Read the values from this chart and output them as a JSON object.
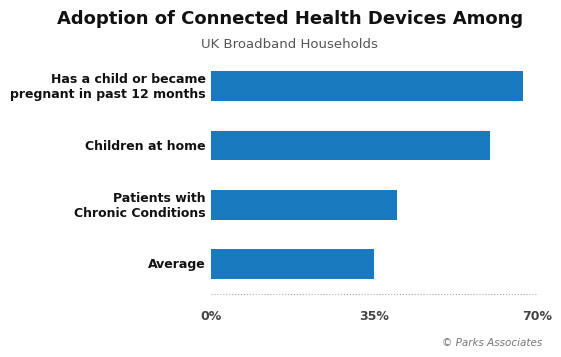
{
  "title": "Adoption of Connected Health Devices Among",
  "subtitle": "UK Broadband Households",
  "categories": [
    "Average",
    "Patients with\nChronic Conditions",
    "Children at home",
    "Has a child or became\npregnant in past 12 months"
  ],
  "values": [
    0.35,
    0.4,
    0.6,
    0.67
  ],
  "bar_color": "#1a7abf",
  "xlim": [
    0,
    0.7
  ],
  "xticks": [
    0.0,
    0.35,
    0.7
  ],
  "xticklabels": [
    "0%",
    "35%",
    "70%"
  ],
  "background_color": "#ffffff",
  "title_fontsize": 13,
  "subtitle_fontsize": 9.5,
  "label_fontsize": 9,
  "tick_fontsize": 9,
  "copyright_text": "© Parks Associates",
  "bar_height": 0.5
}
